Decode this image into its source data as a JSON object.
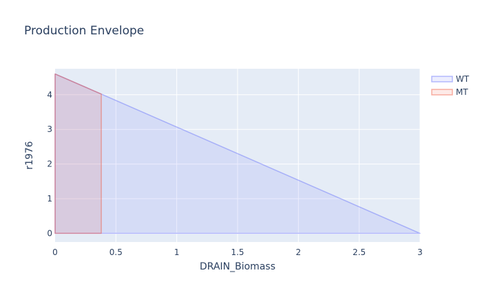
{
  "chart_data": {
    "type": "area",
    "title": "Production Envelope",
    "xlabel": "DRAIN_Biomass",
    "ylabel": "r1976",
    "xlim": [
      0,
      3
    ],
    "ylim": [
      -0.25,
      4.75
    ],
    "x_ticks": [
      0,
      0.5,
      1,
      1.5,
      2,
      2.5,
      3
    ],
    "x_tick_labels": [
      "0",
      "0.5",
      "1",
      "1.5",
      "2",
      "2.5",
      "3"
    ],
    "y_ticks": [
      0,
      1,
      2,
      3,
      4
    ],
    "y_tick_labels": [
      "0",
      "1",
      "2",
      "3",
      "4"
    ],
    "grid": true,
    "legend_position": "top-right",
    "series": [
      {
        "name": "WT",
        "color": "#636efa",
        "points": [
          [
            0,
            4.6
          ],
          [
            0.38,
            4.02
          ],
          [
            3.0,
            0
          ],
          [
            0,
            0
          ]
        ]
      },
      {
        "name": "MT",
        "color": "#ef553b",
        "points": [
          [
            0,
            4.6
          ],
          [
            0.38,
            4.02
          ],
          [
            0.38,
            0
          ],
          [
            0,
            0
          ]
        ]
      }
    ]
  }
}
